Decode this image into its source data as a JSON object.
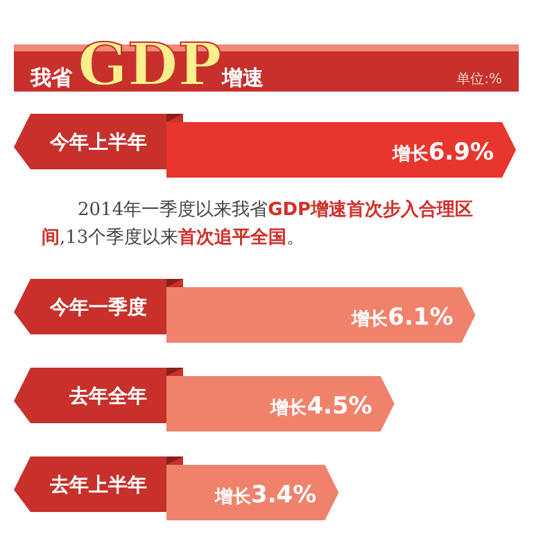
{
  "chart_data": {
    "type": "bar",
    "orientation": "horizontal",
    "title": "我省**GDP**增速",
    "subtitle": "单位:%",
    "categories": [
      "今年上半年",
      "今年一季度",
      "去年全年",
      "去年上半年"
    ],
    "values": [
      6.9,
      6.1,
      4.5,
      3.4
    ],
    "colors": [
      "#e8352e",
      "#f0826c",
      "#f0826c",
      "#f0826c"
    ],
    "value_labels": [
      "增长**6.9%**",
      "增长**6.1%**",
      "增长**4.5%**",
      "增长**3.4%**"
    ],
    "annotations": [
      "2014年一季度以来我省**GDP增速首次步入合理区间**,13个季度以来**首次追平全国**。"
    ]
  }
}
